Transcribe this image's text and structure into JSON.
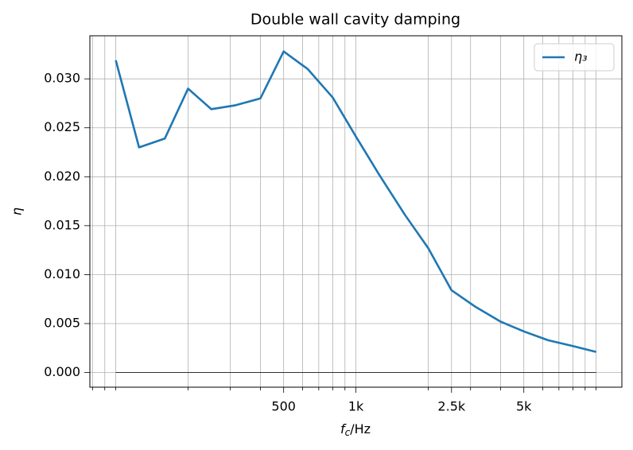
{
  "chart_data": {
    "type": "line",
    "title": "Double wall cavity damping",
    "xlabel": [
      "f",
      "c",
      "/Hz"
    ],
    "ylabel": "η",
    "x": [
      100,
      125,
      160,
      200,
      250,
      315,
      400,
      500,
      630,
      800,
      1000,
      1250,
      1600,
      2000,
      2500,
      3150,
      4000,
      5000,
      6300,
      8000,
      10000
    ],
    "series": [
      {
        "name": "η₃",
        "color": "#1f77b4",
        "values": [
          0.0319,
          0.023,
          0.0239,
          0.029,
          0.0269,
          0.0273,
          0.028,
          0.0328,
          0.031,
          0.0281,
          0.0241,
          0.0202,
          0.0161,
          0.0127,
          0.0084,
          0.0067,
          0.0052,
          0.0042,
          0.0033,
          0.0027,
          0.0021
        ]
      }
    ],
    "hlines": [
      {
        "y": 0,
        "x": [
          100,
          10000
        ],
        "color": "#000000"
      }
    ],
    "xscale": "log",
    "xlim": [
      78,
      12800
    ],
    "ylim": [
      -0.0015,
      0.0344
    ],
    "xticks": [
      {
        "value": 500,
        "label": "500"
      },
      {
        "value": 1000,
        "label": "1k"
      },
      {
        "value": 2500,
        "label": "2.5k"
      },
      {
        "value": 5000,
        "label": "5k"
      }
    ],
    "xminorticks": [
      80,
      90,
      100,
      200,
      300,
      400,
      600,
      700,
      800,
      900,
      2000,
      3000,
      4000,
      6000,
      7000,
      8000,
      9000,
      10000
    ],
    "yticks": [
      {
        "value": 0,
        "label": "0.000"
      },
      {
        "value": 0.005,
        "label": "0.005"
      },
      {
        "value": 0.01,
        "label": "0.010"
      },
      {
        "value": 0.015,
        "label": "0.015"
      },
      {
        "value": 0.02,
        "label": "0.020"
      },
      {
        "value": 0.025,
        "label": "0.025"
      },
      {
        "value": 0.03,
        "label": "0.030"
      }
    ],
    "grid": true,
    "legend": "upper right"
  }
}
